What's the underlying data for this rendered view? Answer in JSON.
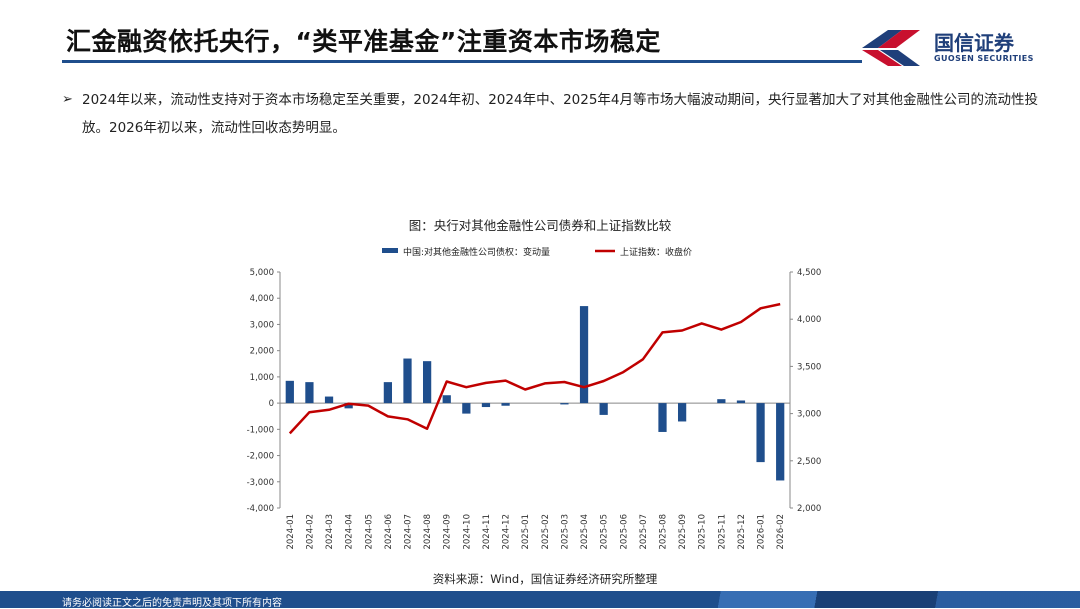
{
  "header": {
    "title": "汇金融资依托央行，“类平准基金”注重资本市场稳定",
    "logo_cn": "国信证券",
    "logo_en": "GUOSEN SECURITIES"
  },
  "bullet": {
    "arrow": "➢",
    "text": "2024年以来，流动性支持对于资本市场稳定至关重要，2024年初、2024年中、2025年4月等市场大幅波动期间，央行显著加大了对其他金融性公司的流动性投放。2026年初以来，流动性回收态势明显。"
  },
  "footer": {
    "disclaimer": "请务必阅读正文之后的免责声明及其项下所有内容"
  },
  "colors": {
    "bar": "#1f4e8c",
    "line": "#c00000",
    "title_rule": "#1f4e8c"
  },
  "chart_data": {
    "type": "bar+line",
    "title": "图：央行对其他金融性公司债券和上证指数比较",
    "source": "资料来源：Wind，国信证券经济研究所整理",
    "categories": [
      "2024-01",
      "2024-02",
      "2024-03",
      "2024-04",
      "2024-05",
      "2024-06",
      "2024-07",
      "2024-08",
      "2024-09",
      "2024-10",
      "2024-11",
      "2024-12",
      "2025-01",
      "2025-02",
      "2025-03",
      "2025-04",
      "2025-05",
      "2025-06",
      "2025-07",
      "2025-08",
      "2025-09",
      "2025-10",
      "2025-11",
      "2025-12",
      "2026-01",
      "2026-02"
    ],
    "tick_labels": [
      "2024-01",
      "2024-02",
      "2024-03",
      "2024-04",
      "2024-05",
      "2024-06",
      "2024-07",
      "2024-08",
      "2024-09",
      "2024-10",
      "2024-11",
      "2024-12",
      "2025-01",
      "2025-02",
      "2025-03",
      "2025-04",
      "2025-05",
      "2025-06",
      "2025-07",
      "2025-08",
      "2025-09",
      "2025-10",
      "2025-11",
      "2025-12",
      "2026-01",
      "2026-02"
    ],
    "left_axis": {
      "ylim": [
        -4000,
        5000
      ],
      "ticks": [
        -4000,
        -3000,
        -2000,
        -1000,
        0,
        1000,
        2000,
        3000,
        4000,
        5000
      ],
      "tick_labels": [
        "-4,000",
        "-3,000",
        "-2,000",
        "-1,000",
        "0",
        "1,000",
        "2,000",
        "3,000",
        "4,000",
        "5,000"
      ]
    },
    "right_axis": {
      "ylim": [
        2000,
        4500
      ],
      "ticks": [
        2000,
        2500,
        3000,
        3500,
        4000,
        4500
      ],
      "tick_labels": [
        "2,000",
        "2,500",
        "3,000",
        "3,500",
        "4,000",
        "4,500"
      ]
    },
    "legend_position": "top-center",
    "series": [
      {
        "name": "中国:对其他金融性公司债权：变动量",
        "type": "bar",
        "axis": "left",
        "values": [
          850,
          800,
          250,
          -200,
          0,
          800,
          1700,
          1600,
          300,
          -400,
          -150,
          -100,
          0,
          0,
          -50,
          3700,
          -450,
          0,
          0,
          -1100,
          -700,
          0,
          150,
          100,
          -2250,
          -2950
        ]
      },
      {
        "name": "上证指数：收盘价",
        "type": "line",
        "axis": "right",
        "values": [
          2790,
          3015,
          3040,
          3105,
          3085,
          2970,
          2940,
          2840,
          3340,
          3280,
          3325,
          3350,
          3255,
          3320,
          3335,
          3280,
          3345,
          3440,
          3575,
          3860,
          3880,
          3955,
          3890,
          3970,
          4115,
          4160
        ]
      }
    ]
  }
}
